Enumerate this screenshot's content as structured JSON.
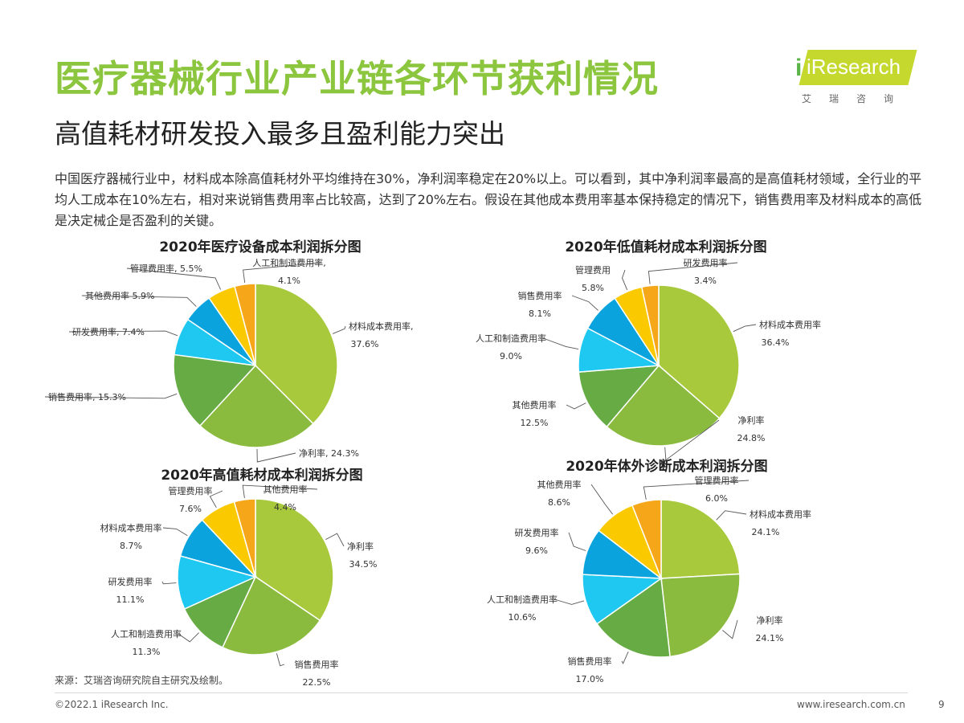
{
  "header": {
    "title": "医疗器械行业产业链各环节获利情况",
    "subtitle": "高值耗材研发投入最多且盈利能力突出",
    "body": "中国医疗器械行业中，材料成本除高值耗材外平均维持在30%，净利润率稳定在20%以上。可以看到，其中净利润率最高的是高值耗材领域，全行业的平均人工成本在10%左右，相对来说销售费用率占比较高，达到了20%左右。假设在其他成本费用率基本保持稳定的情况下，销售费用率及材料成本的高低是决定械企是否盈利的关键。"
  },
  "logo": {
    "text": "iResearch",
    "cn": "艾瑞咨询"
  },
  "colors": {
    "title": "#8cc63f",
    "pie": [
      "#a7c93b",
      "#8abb3f",
      "#67ab45",
      "#1ec8f0",
      "#0aa3de",
      "#fbc900",
      "#f6a619"
    ]
  },
  "chart_data": [
    {
      "type": "pie",
      "title": "2020年医疗设备成本利润拆分图",
      "labels": [
        "材料成本费用率,",
        "净利率,",
        "销售费用率,",
        "研发费用率,",
        "其他费用率",
        "管理费用率,",
        "人工和制造费用率,"
      ],
      "values": [
        37.6,
        24.3,
        15.3,
        7.4,
        5.9,
        5.5,
        4.1
      ],
      "value_labels": [
        "37.6%",
        "24.3%",
        "15.3%",
        "7.4%",
        "5.9%",
        "5.5%",
        "4.1%"
      ]
    },
    {
      "type": "pie",
      "title": "2020年低值耗材成本利润拆分图",
      "labels": [
        "材料成本费用率",
        "净利率",
        "其他费用率",
        "人工和制造费用率",
        "销售费用率",
        "管理费用",
        "研发费用率"
      ],
      "values": [
        36.4,
        24.8,
        12.5,
        9.0,
        8.1,
        5.8,
        3.4
      ],
      "value_labels": [
        "36.4%",
        "24.8%",
        "12.5%",
        "9.0%",
        "8.1%",
        "5.8%",
        "3.4%"
      ]
    },
    {
      "type": "pie",
      "title": "2020年高值耗材成本利润拆分图",
      "labels": [
        "净利率",
        "销售费用率",
        "人工和制造费用率",
        "研发费用率",
        "材料成本费用率",
        "管理费用率",
        "其他费用率"
      ],
      "values": [
        34.5,
        22.5,
        11.3,
        11.1,
        8.7,
        7.6,
        4.4
      ],
      "value_labels": [
        "34.5%",
        "22.5%",
        "11.3%",
        "11.1%",
        "8.7%",
        "7.6%",
        "4.4%"
      ]
    },
    {
      "type": "pie",
      "title": "2020年体外诊断成本利润拆分图",
      "labels": [
        "材料成本费用率",
        "净利率",
        "销售费用率",
        "人工和制造费用率",
        "研发费用率",
        "其他费用率",
        "管理费用率"
      ],
      "values": [
        24.1,
        24.1,
        17.0,
        10.6,
        9.6,
        8.6,
        6.0
      ],
      "value_labels": [
        "24.1%",
        "24.1%",
        "17.0%",
        "10.6%",
        "9.6%",
        "8.6%",
        "6.0%"
      ]
    }
  ],
  "footer": {
    "source": "来源：艾瑞咨询研究院自主研究及绘制。",
    "copyright": "©2022.1 iResearch Inc.",
    "website": "www.iresearch.com.cn",
    "page": "9"
  }
}
